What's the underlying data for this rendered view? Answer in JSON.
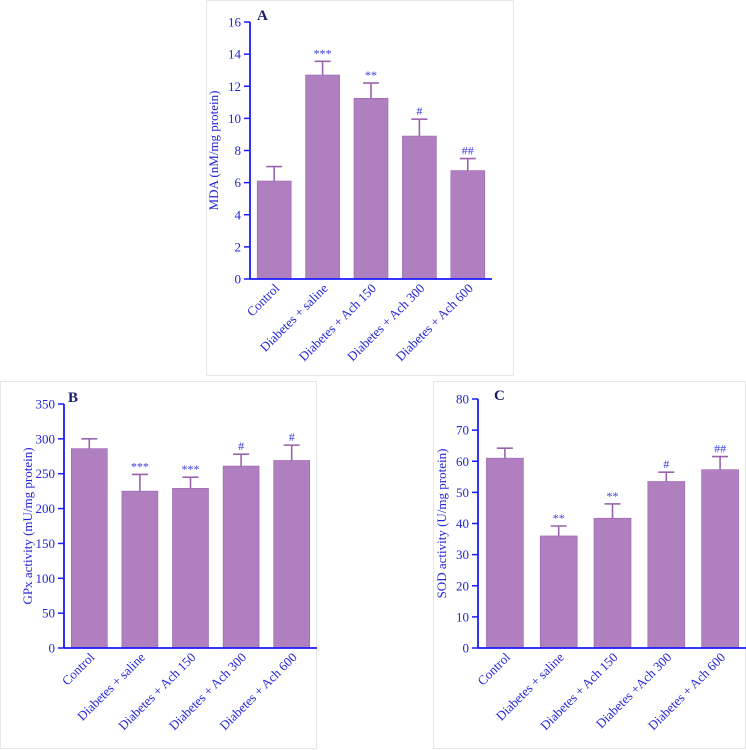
{
  "colors": {
    "bar": "#b07fc0",
    "bar_edge": "#9a63ad",
    "axis": "#1a1aff",
    "text": "#2424d8",
    "sig": "#3a3ae0"
  },
  "chart_data": [
    {
      "type": "bar",
      "panel_label": "A",
      "ylabel": "MDA (nM/mg protein)",
      "ylim": [
        0,
        16
      ],
      "yticks": [
        "0",
        "2",
        "4",
        "6",
        "8",
        "10",
        "12",
        "14",
        "16"
      ],
      "categories": [
        "Control",
        "Diabetes + saline",
        "Diabetes + Ach 150",
        "Diabetes + Ach 300",
        "Diabetes + Ach 600"
      ],
      "values": [
        6.1,
        12.7,
        11.25,
        8.9,
        6.75
      ],
      "errors": [
        0.9,
        0.85,
        0.95,
        1.05,
        0.75
      ],
      "annotations": [
        "",
        "***",
        "**",
        "#",
        "##"
      ]
    },
    {
      "type": "bar",
      "panel_label": "B",
      "ylabel": "GPx activity (mU/mg protein)",
      "ylim": [
        0,
        350
      ],
      "yticks": [
        "0",
        "50",
        "100",
        "150",
        "200",
        "250",
        "300",
        "350"
      ],
      "categories": [
        "Control",
        "Diabetes + saline",
        "Diabetes + Ach 150",
        "Diabetes + Ach 300",
        "Diabetes + Ach 600"
      ],
      "values": [
        286,
        225,
        229,
        261,
        269
      ],
      "errors": [
        14,
        24,
        16,
        17,
        22
      ],
      "annotations": [
        "",
        "***",
        "***",
        "#",
        "#"
      ]
    },
    {
      "type": "bar",
      "panel_label": "C",
      "ylabel": "SOD activity (U/mg protein)",
      "ylim": [
        0,
        80
      ],
      "yticks": [
        "0",
        "10",
        "20",
        "30",
        "40",
        "50",
        "60",
        "70",
        "80"
      ],
      "categories": [
        "Control",
        "Diabetes + saline",
        "Diabetes + Ach 150",
        "Diabetes +Ach 300",
        "Diabetes + Ach 600"
      ],
      "values": [
        61,
        36,
        41.7,
        53.5,
        57.3
      ],
      "errors": [
        3.2,
        3.2,
        4.6,
        3.0,
        4.2
      ],
      "annotations": [
        "",
        "**",
        "**",
        "#",
        "##"
      ]
    }
  ]
}
